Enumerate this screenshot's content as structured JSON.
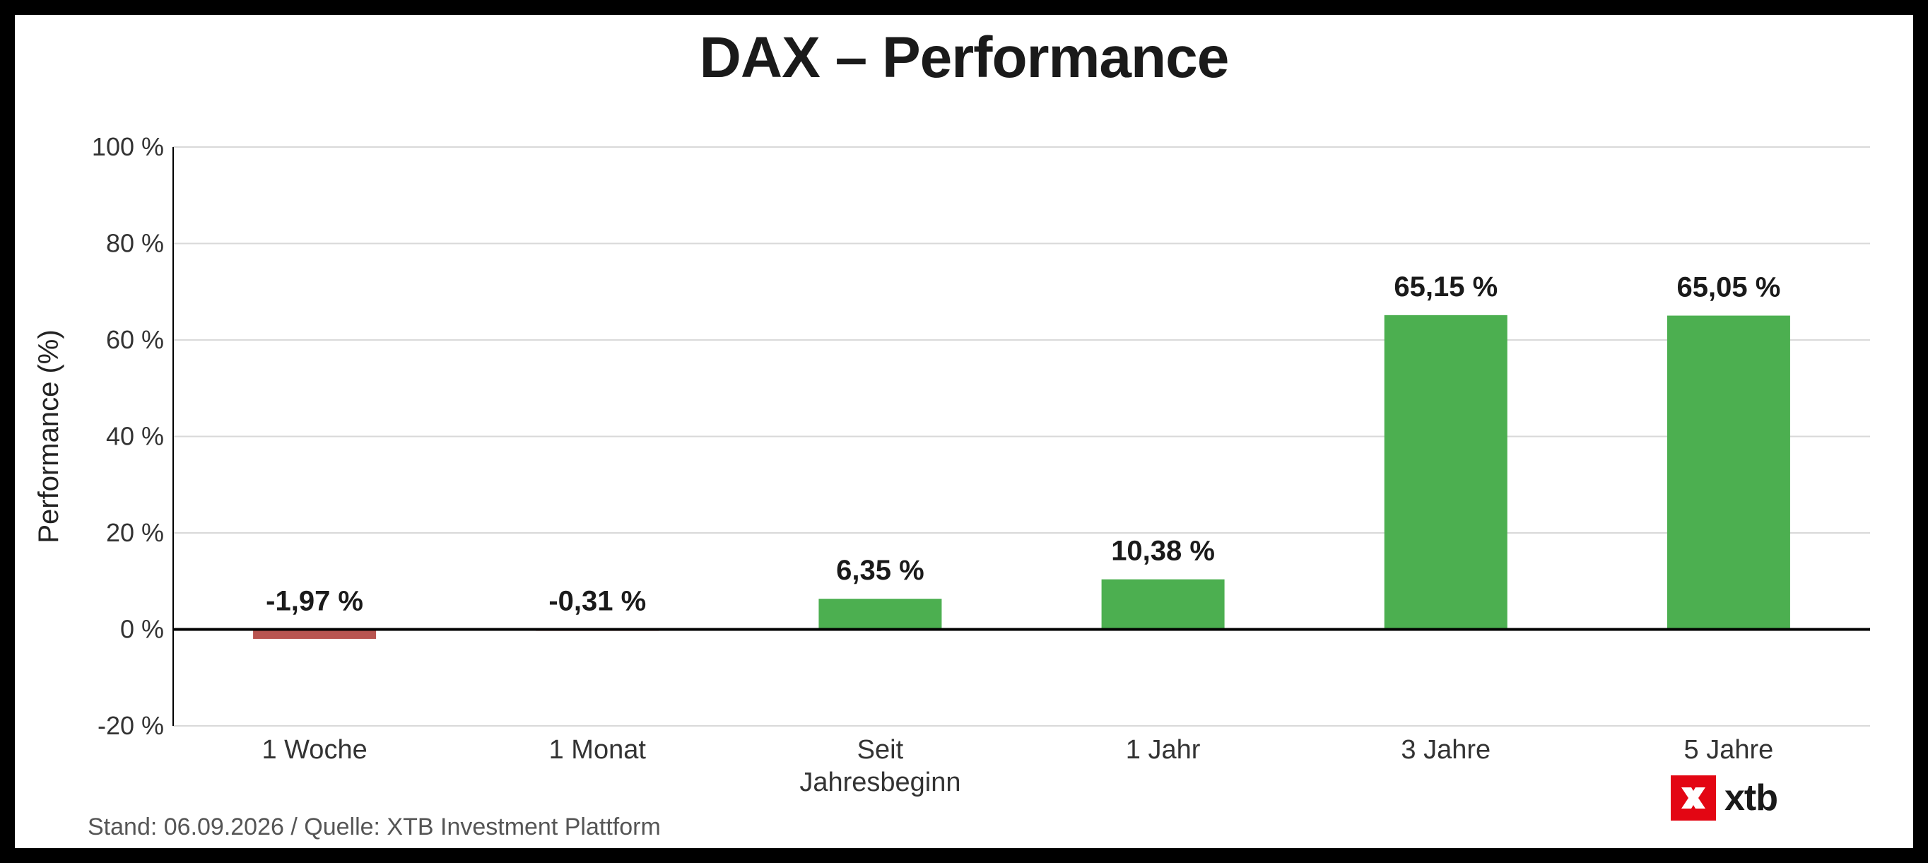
{
  "title": "DAX – Performance",
  "footer": "Stand: 06.09.2026 / Quelle: XTB Investment Plattform",
  "logo": {
    "text": "xtb",
    "icon": "xtb-logo-icon",
    "color": "#e30613"
  },
  "colors": {
    "positive": "#4caf50",
    "negative": "#b85450",
    "grid": "#d9d9d9",
    "axis": "#000000"
  },
  "chart_data": {
    "type": "bar",
    "title": "DAX – Performance",
    "xlabel": "",
    "ylabel": "Performance (%)",
    "categories": [
      [
        "1 Woche"
      ],
      [
        "1 Monat"
      ],
      [
        "Seit",
        "Jahresbeginn"
      ],
      [
        "1 Jahr"
      ],
      [
        "3 Jahre"
      ],
      [
        "5 Jahre"
      ]
    ],
    "values": [
      -1.97,
      -0.31,
      6.35,
      10.38,
      65.15,
      65.05
    ],
    "data_labels": [
      "-1,97 %",
      "-0,31 %",
      "6,35 %",
      "10,38 %",
      "65,15 %",
      "65,05 %"
    ],
    "ylim": [
      -20,
      100
    ],
    "yticks": [
      -20,
      0,
      20,
      40,
      60,
      80,
      100
    ],
    "ytick_labels": [
      "-20 %",
      "0 %",
      "20 %",
      "40 %",
      "60 %",
      "80 %",
      "100 %"
    ],
    "grid": true,
    "legend": "none"
  }
}
